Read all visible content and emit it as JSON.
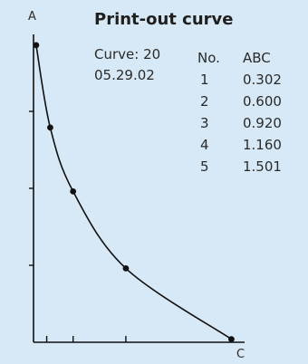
{
  "header": {
    "title": "Print-out curve",
    "curve_label": "Curve: 20",
    "date": "05.29.02"
  },
  "table": {
    "headers": [
      "No.",
      "ABC"
    ],
    "rows": [
      [
        "1",
        "0.302"
      ],
      [
        "2",
        "0.600"
      ],
      [
        "3",
        "0.920"
      ],
      [
        "4",
        "1.160"
      ],
      [
        "5",
        "1.501"
      ]
    ]
  },
  "chart_data": {
    "type": "line",
    "title": "Print-out curve",
    "y_axis_letter": "A",
    "x_axis_letter": "C",
    "points": [
      {
        "x": 0.3,
        "y": 3.86
      },
      {
        "x": 1.9,
        "y": 2.79
      },
      {
        "x": 4.5,
        "y": 1.96
      },
      {
        "x": 10.5,
        "y": 0.96
      },
      {
        "x": 22.5,
        "y": 0.04
      }
    ],
    "xlim": [
      0,
      24
    ],
    "ylim": [
      0,
      4.0
    ],
    "y_ticks": [
      1,
      2,
      3
    ],
    "x_ticks": [
      1.5,
      4.5,
      10.5
    ],
    "grid": false,
    "colors": {
      "background": "#d7e9f6",
      "line": "#111111",
      "text": "#2a2a2a"
    }
  }
}
